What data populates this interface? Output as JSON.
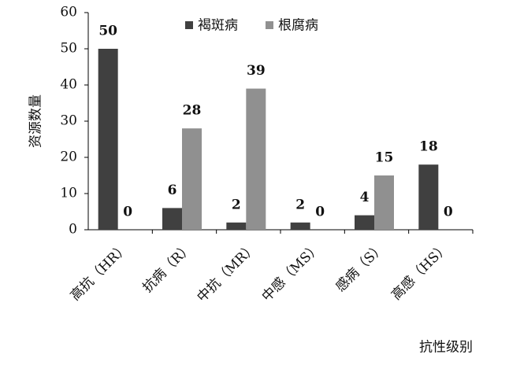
{
  "chart_data": {
    "type": "bar",
    "categories": [
      "高抗（HR）",
      "抗病（R）",
      "中抗（MR）",
      "中感（MS）",
      "感病（S）",
      "高感（HS）"
    ],
    "series": [
      {
        "name": "褐斑病",
        "color": "#404040",
        "values": [
          50,
          6,
          2,
          2,
          4,
          18
        ]
      },
      {
        "name": "根腐病",
        "color": "#909090",
        "values": [
          0,
          28,
          39,
          0,
          15,
          0
        ]
      }
    ],
    "ylim": [
      0,
      60
    ],
    "yticks": [
      0,
      10,
      20,
      30,
      40,
      50,
      60
    ],
    "ylabel": "资源数量",
    "xlabel": "抗性级别",
    "legend": "top"
  }
}
